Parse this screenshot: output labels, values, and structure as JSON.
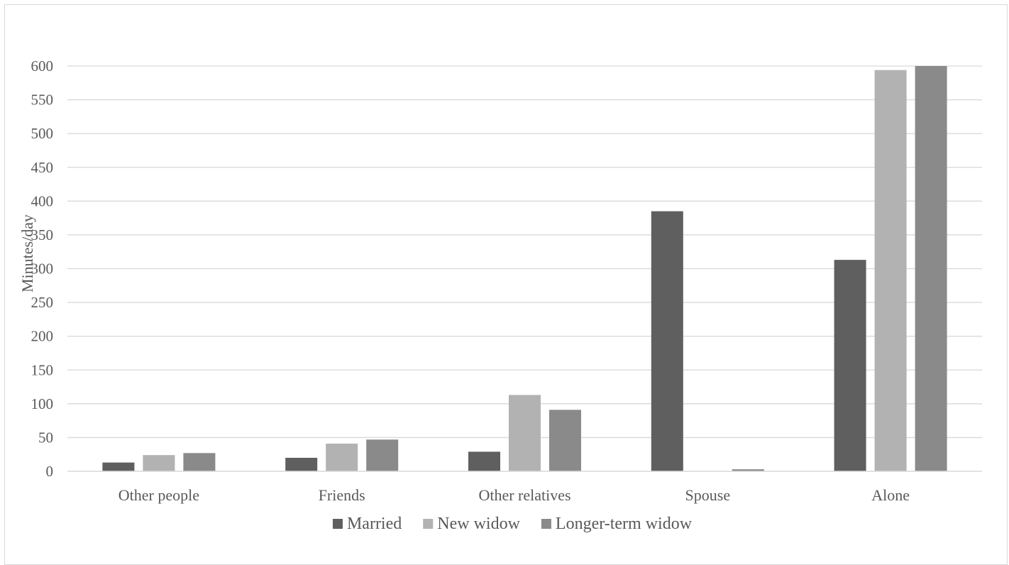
{
  "chart_data": {
    "type": "bar",
    "title": "",
    "xlabel": "",
    "ylabel": "Minutes/day",
    "ylim": [
      0,
      600
    ],
    "yticks": [
      0,
      50,
      100,
      150,
      200,
      250,
      300,
      350,
      400,
      450,
      500,
      550,
      600
    ],
    "grid": true,
    "legend_position": "bottom",
    "categories": [
      "Other people",
      "Friends",
      "Other relatives",
      "Spouse",
      "Alone"
    ],
    "series": [
      {
        "name": "Married",
        "color": "#5f5f5f",
        "values": [
          13,
          20,
          29,
          385,
          313
        ]
      },
      {
        "name": "New widow",
        "color": "#b2b2b2",
        "values": [
          24,
          41,
          113,
          0,
          594
        ]
      },
      {
        "name": "Longer-term widow",
        "color": "#8a8a8a",
        "values": [
          27,
          47,
          91,
          3,
          600
        ]
      }
    ]
  }
}
